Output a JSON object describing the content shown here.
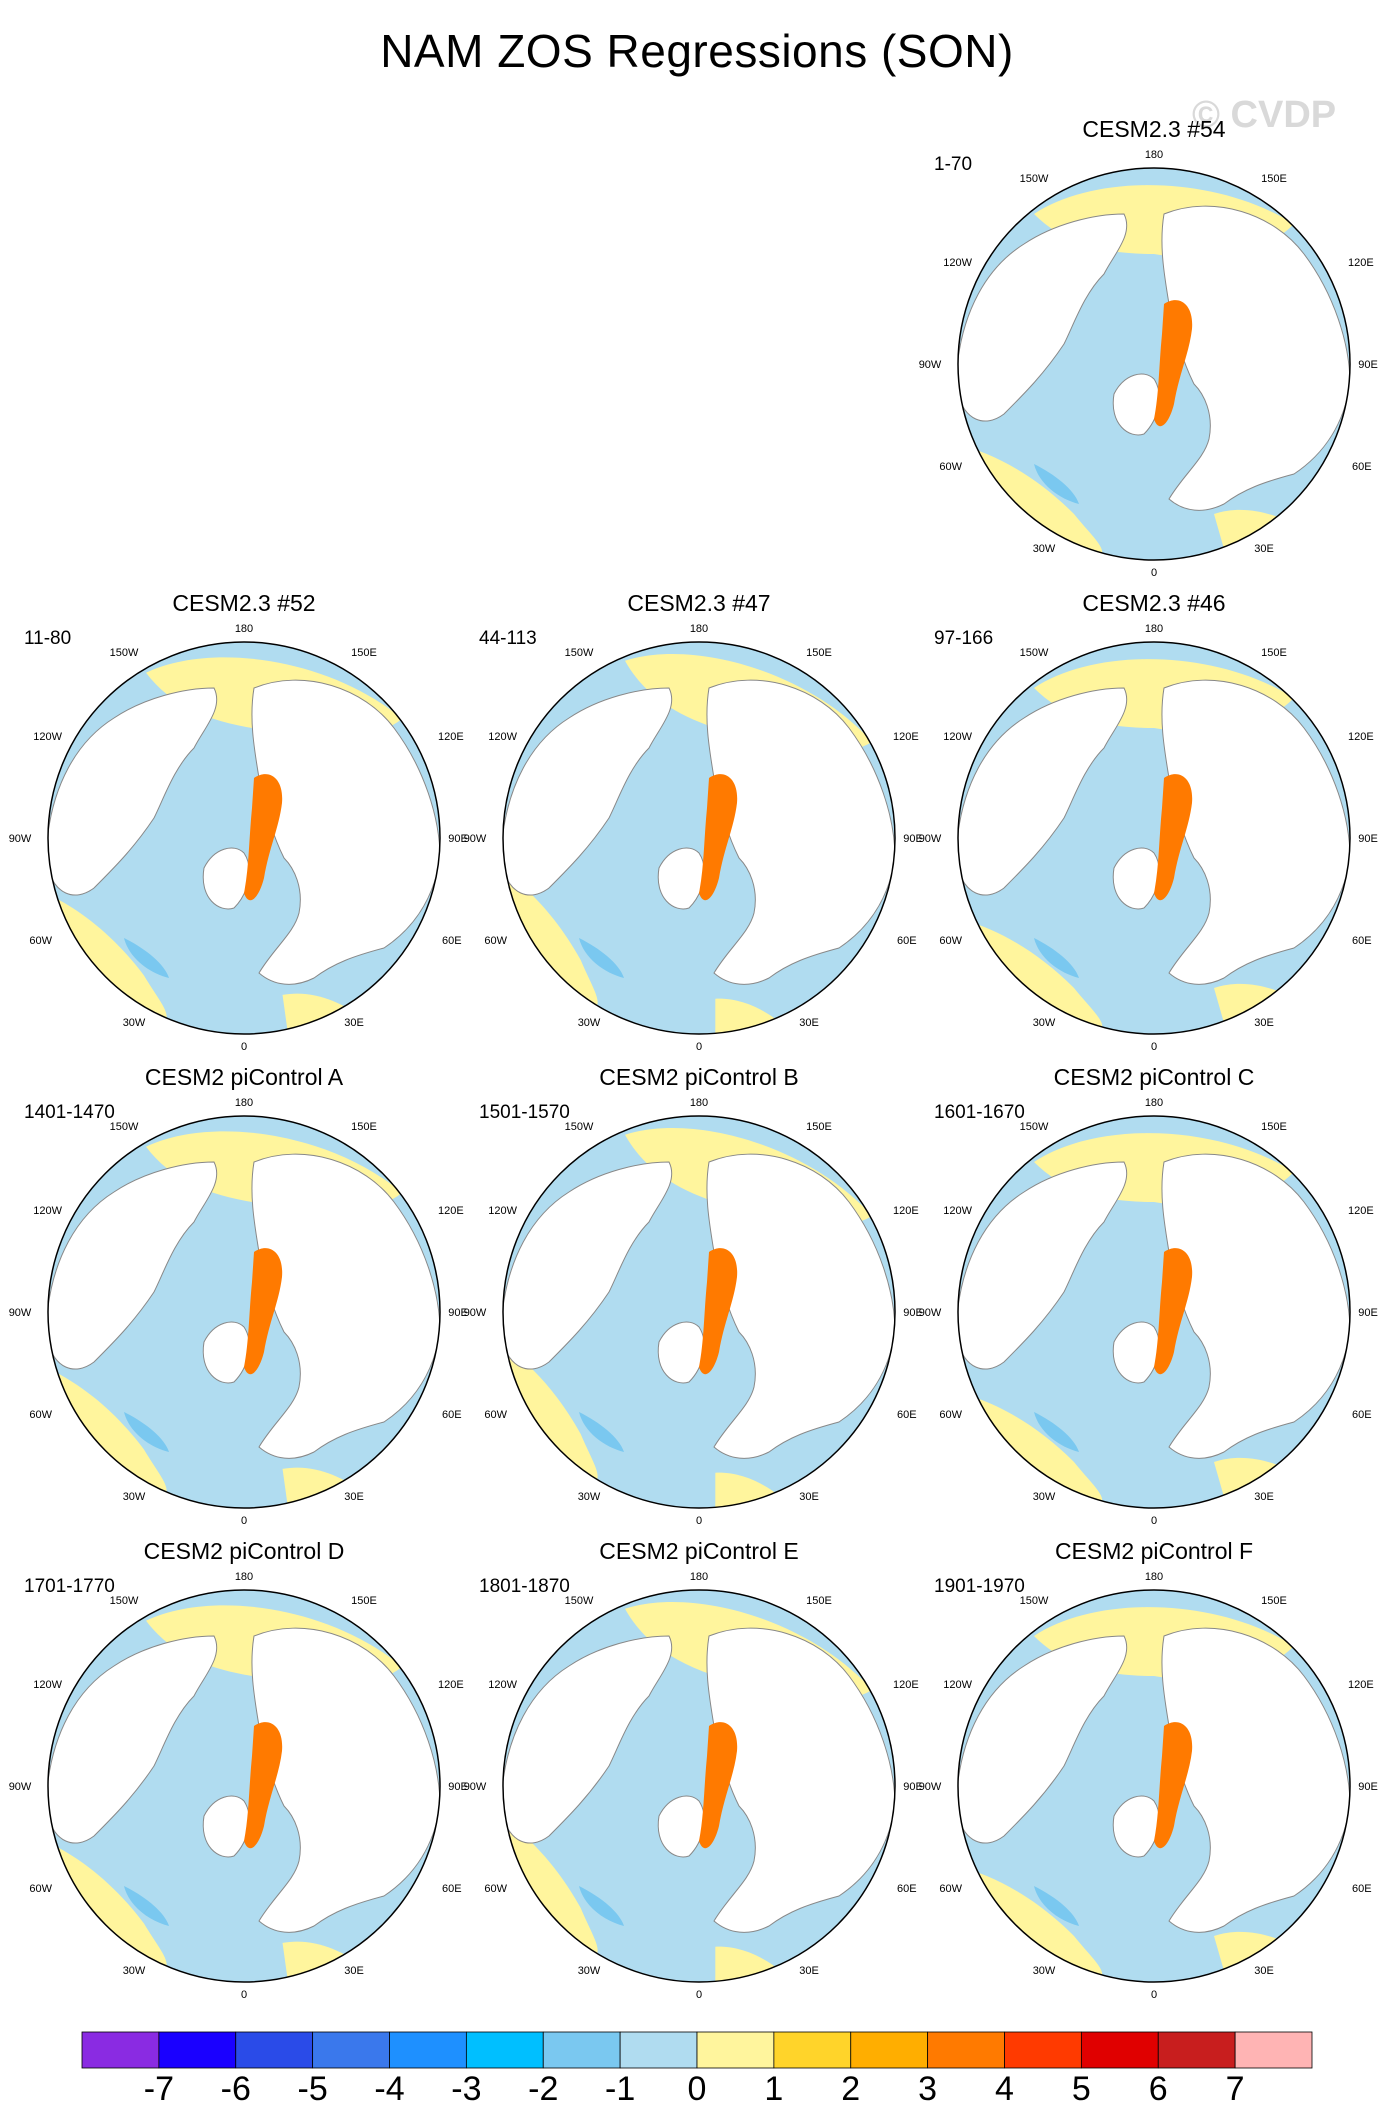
{
  "title": "NAM ZOS Regressions (SON)",
  "watermark": "© CVDP",
  "lon_labels": {
    "top": "180",
    "bottom": "0",
    "left": "90W",
    "right": "90E",
    "ul1": "150W",
    "ul2": "120W",
    "ur1": "150E",
    "ur2": "120E",
    "ll1": "60W",
    "ll2": "30W",
    "lr1": "60E",
    "lr2": "30E"
  },
  "panels": [
    {
      "title": "CESM2.3 #54",
      "years": "1-70"
    },
    {
      "title": "CESM2.3 #52",
      "years": "11-80"
    },
    {
      "title": "CESM2.3 #47",
      "years": "44-113"
    },
    {
      "title": "CESM2.3 #46",
      "years": "97-166"
    },
    {
      "title": "CESM2 piControl A",
      "years": "1401-1470"
    },
    {
      "title": "CESM2 piControl B",
      "years": "1501-1570"
    },
    {
      "title": "CESM2 piControl C",
      "years": "1601-1670"
    },
    {
      "title": "CESM2 piControl D",
      "years": "1701-1770"
    },
    {
      "title": "CESM2 piControl E",
      "years": "1801-1870"
    },
    {
      "title": "CESM2 piControl F",
      "years": "1901-1970"
    }
  ],
  "colorbar": {
    "labels": [
      "-7",
      "-6",
      "-5",
      "-4",
      "-3",
      "-2",
      "-1",
      "0",
      "1",
      "2",
      "3",
      "4",
      "5",
      "6",
      "7"
    ],
    "colors": [
      "#8a2be2",
      "#1a00ff",
      "#2a4be8",
      "#3a78ec",
      "#1e90ff",
      "#00bfff",
      "#7ac8f0",
      "#b0dcf0",
      "#fff59d",
      "#ffd42a",
      "#ffae00",
      "#ff7a00",
      "#ff3a00",
      "#e00000",
      "#c81e1e",
      "#ffb4b4"
    ]
  },
  "colors": {
    "ocean_neutral": "#b0dcf0",
    "ocean_positive": "#fff59d",
    "land": "#ffffff",
    "strong_positive": "#ff7a00",
    "negative": "#7ac8f0"
  }
}
